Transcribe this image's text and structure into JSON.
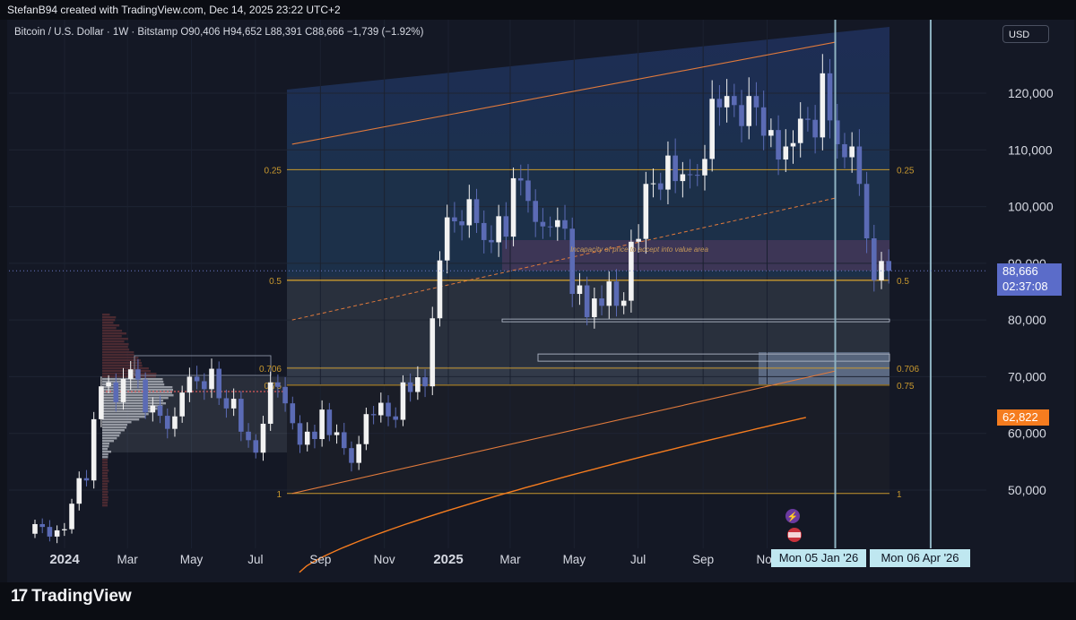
{
  "header": {
    "creator_line": "StefanB94 created with TradingView.com, Dec 14, 2025 23:22 UTC+2"
  },
  "legend": {
    "symbol_line": "Bitcoin / U.S. Dollar · 1W · Bitstamp",
    "open": "O90,406",
    "high": "H94,652",
    "low": "L88,391",
    "close": "C88,666",
    "change": "−1,739 (−1.92%)"
  },
  "currency_button": "USD",
  "price_badge": {
    "price": "88,666",
    "countdown": "02:37:08",
    "color": "#5b6cc9"
  },
  "ma_badge": {
    "value": "62,822",
    "color": "#f57c1f"
  },
  "date_badges": [
    "Mon 05 Jan '26",
    "Mon 06 Apr '26"
  ],
  "annotation": "Incapacity of price to accept into value area",
  "fib_labels": {
    "f025": "0.25",
    "f05": "0.5",
    "f0706": "0.706",
    "f075": "0.75",
    "f1": "1"
  },
  "brand": "TradingView",
  "colors": {
    "up": "#f2f2f2",
    "down": "#5b6bb5",
    "channel": "#e07a3c",
    "fib": "#c8982e",
    "ma": "#f57c1f",
    "vline": "#8fb3c2"
  },
  "chart_data": {
    "type": "candlestick",
    "title": "Bitcoin / U.S. Dollar · 1W · Bitstamp",
    "ylim": [
      40000,
      128000
    ],
    "y_ticks": [
      "120,000",
      "110,000",
      "100,000",
      "90,000",
      "80,000",
      "70,000",
      "60,000",
      "50,000"
    ],
    "y_tick_values": [
      120000,
      110000,
      100000,
      90000,
      80000,
      70000,
      60000,
      50000
    ],
    "x_ticks": [
      "2024",
      "Mar",
      "May",
      "Jul",
      "Sep",
      "Nov",
      "2025",
      "Mar",
      "May",
      "Jul",
      "Sep",
      "Nov"
    ],
    "x_tick_dates": [
      "2024-01-01",
      "2024-03-01",
      "2024-05-01",
      "2024-07-01",
      "2024-09-01",
      "2024-11-01",
      "2025-01-01",
      "2025-03-01",
      "2025-05-01",
      "2025-07-01",
      "2025-09-01",
      "2025-11-01"
    ],
    "bold_ticks": [
      "2024",
      "2025"
    ],
    "weekly_closes": [
      44000,
      43500,
      41800,
      42900,
      43100,
      47600,
      52100,
      51700,
      62500,
      68300,
      69000,
      65500,
      69600,
      71300,
      69500,
      63700,
      64900,
      63100,
      60800,
      63000,
      67200,
      70000,
      69200,
      67800,
      71400,
      66200,
      64400,
      66100,
      60300,
      58800,
      56600,
      61700,
      69000,
      68200,
      65300,
      61800,
      58000,
      60300,
      59000,
      64200,
      59700,
      60200,
      57400,
      54800,
      58100,
      63400,
      63200,
      65400,
      63000,
      62400,
      69000,
      67300,
      69900,
      68300,
      80300,
      90500,
      98100,
      97400,
      96700,
      101300,
      97100,
      94100,
      93700,
      98300,
      94700,
      105000,
      104600,
      101000,
      97300,
      96500,
      96400,
      97600,
      96100,
      84600,
      86100,
      80500,
      83800,
      82500,
      86800,
      82500,
      83400,
      93800,
      94300,
      104000,
      104100,
      103000,
      109000,
      104500,
      105700,
      105600,
      105500,
      108400,
      119000,
      117500,
      119500,
      117900,
      114200,
      119500,
      117500,
      112500,
      113500,
      108300,
      110600,
      111200,
      115500,
      115300,
      112200,
      123500,
      115200,
      111000,
      108700,
      110600,
      104000,
      94400,
      87000,
      90400,
      88666
    ],
    "moving_average": {
      "name": "",
      "value": 62822
    },
    "fib_levels": [
      {
        "label": "0.25",
        "price": 106500
      },
      {
        "label": "0.5",
        "price": 87000
      },
      {
        "label": "0.706",
        "price": 71500
      },
      {
        "label": "0.75",
        "price": 68500
      },
      {
        "label": "1",
        "price": 49400
      }
    ],
    "ascending_channel": {
      "upper": [
        [
          "2024-08-05",
          111000
        ],
        [
          "2026-01-05",
          129000
        ]
      ],
      "mid_dashed": [
        [
          "2024-08-05",
          80000
        ],
        [
          "2026-01-05",
          101500
        ]
      ],
      "lower": [
        [
          "2024-08-05",
          49400
        ],
        [
          "2026-01-05",
          71000
        ]
      ]
    },
    "value_area": {
      "high": 94200,
      "low": 90500
    },
    "vertical_lines": [
      "2026-01-05",
      "2026-04-06"
    ],
    "volume_profile": "left side, 2024 range"
  }
}
